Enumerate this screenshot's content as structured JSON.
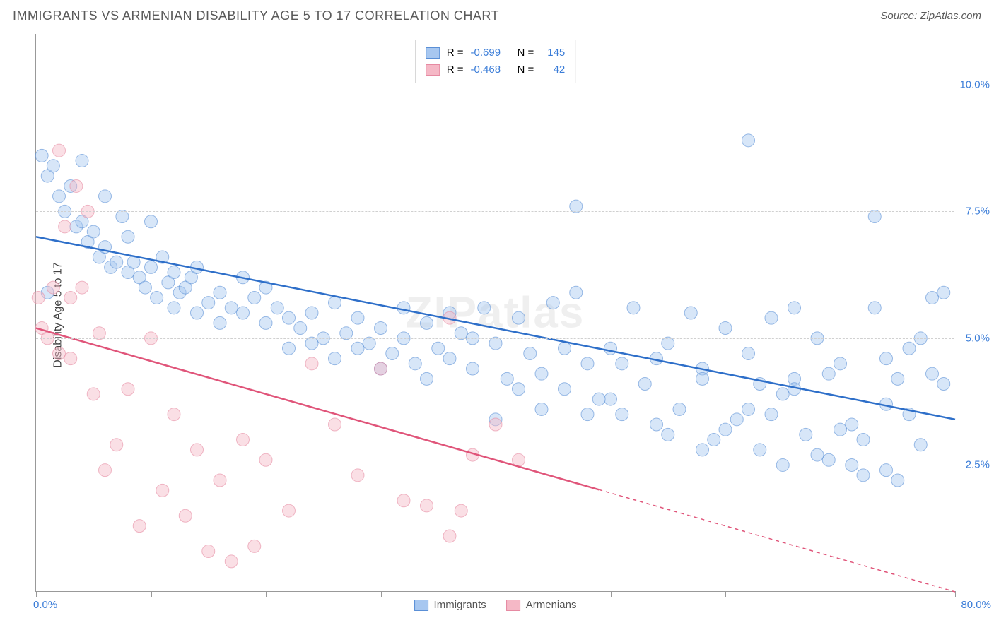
{
  "header": {
    "title": "IMMIGRANTS VS ARMENIAN DISABILITY AGE 5 TO 17 CORRELATION CHART",
    "source_prefix": "Source: ",
    "source": "ZipAtlas.com"
  },
  "watermark": "ZIPatlas",
  "chart": {
    "type": "scatter",
    "ylabel": "Disability Age 5 to 17",
    "xlim": [
      0,
      80
    ],
    "ylim": [
      0,
      11
    ],
    "xtick_positions": [
      0,
      10,
      20,
      30,
      40,
      50,
      60,
      70,
      80
    ],
    "xlabel_min": "0.0%",
    "xlabel_max": "80.0%",
    "yticks": [
      {
        "v": 2.5,
        "label": "2.5%"
      },
      {
        "v": 5.0,
        "label": "5.0%"
      },
      {
        "v": 7.5,
        "label": "7.5%"
      },
      {
        "v": 10.0,
        "label": "10.0%"
      }
    ],
    "grid_color": "#d0d0d0",
    "background_color": "#ffffff",
    "marker_radius": 9,
    "marker_opacity": 0.45,
    "line_width": 2.5,
    "series": [
      {
        "name": "Immigrants",
        "color_fill": "#a7c7f0",
        "color_stroke": "#5a8fd6",
        "line_color": "#2e6fc9",
        "R": "-0.699",
        "N": "145",
        "trend": {
          "x1": 0,
          "y1": 7.0,
          "x2": 80,
          "y2": 3.4,
          "solid_until_x": 80
        },
        "points": [
          [
            0.5,
            8.6
          ],
          [
            1,
            8.2
          ],
          [
            1.5,
            8.4
          ],
          [
            2,
            7.8
          ],
          [
            2.5,
            7.5
          ],
          [
            3,
            8.0
          ],
          [
            3.5,
            7.2
          ],
          [
            1,
            5.9
          ],
          [
            4,
            7.3
          ],
          [
            4.5,
            6.9
          ],
          [
            5,
            7.1
          ],
          [
            5.5,
            6.6
          ],
          [
            6,
            6.8
          ],
          [
            6.5,
            6.4
          ],
          [
            7,
            6.5
          ],
          [
            7.5,
            7.4
          ],
          [
            8,
            6.3
          ],
          [
            8.5,
            6.5
          ],
          [
            9,
            6.2
          ],
          [
            9.5,
            6.0
          ],
          [
            10,
            6.4
          ],
          [
            10.5,
            5.8
          ],
          [
            11,
            6.6
          ],
          [
            11.5,
            6.1
          ],
          [
            12,
            6.3
          ],
          [
            12.5,
            5.9
          ],
          [
            13,
            6.0
          ],
          [
            13.5,
            6.2
          ],
          [
            14,
            6.4
          ],
          [
            15,
            5.7
          ],
          [
            16,
            5.9
          ],
          [
            17,
            5.6
          ],
          [
            18,
            5.5
          ],
          [
            19,
            5.8
          ],
          [
            20,
            5.3
          ],
          [
            21,
            5.6
          ],
          [
            22,
            5.4
          ],
          [
            23,
            5.2
          ],
          [
            24,
            5.5
          ],
          [
            25,
            5.0
          ],
          [
            26,
            5.7
          ],
          [
            27,
            5.1
          ],
          [
            28,
            5.4
          ],
          [
            29,
            4.9
          ],
          [
            30,
            5.2
          ],
          [
            31,
            4.7
          ],
          [
            32,
            5.0
          ],
          [
            33,
            4.5
          ],
          [
            34,
            5.3
          ],
          [
            35,
            4.8
          ],
          [
            36,
            4.6
          ],
          [
            37,
            5.1
          ],
          [
            38,
            4.4
          ],
          [
            39,
            5.6
          ],
          [
            40,
            4.9
          ],
          [
            41,
            4.2
          ],
          [
            42,
            5.4
          ],
          [
            43,
            4.7
          ],
          [
            44,
            4.3
          ],
          [
            45,
            5.7
          ],
          [
            46,
            4.0
          ],
          [
            47,
            5.9
          ],
          [
            48,
            4.5
          ],
          [
            49,
            3.8
          ],
          [
            50,
            4.8
          ],
          [
            51,
            3.5
          ],
          [
            52,
            5.6
          ],
          [
            53,
            4.1
          ],
          [
            54,
            3.3
          ],
          [
            55,
            4.9
          ],
          [
            56,
            3.6
          ],
          [
            57,
            5.5
          ],
          [
            58,
            4.4
          ],
          [
            59,
            3.0
          ],
          [
            60,
            5.2
          ],
          [
            61,
            3.4
          ],
          [
            62,
            4.7
          ],
          [
            63,
            2.8
          ],
          [
            64,
            5.4
          ],
          [
            65,
            3.9
          ],
          [
            65,
            2.5
          ],
          [
            66,
            4.2
          ],
          [
            67,
            3.1
          ],
          [
            68,
            5.0
          ],
          [
            69,
            2.6
          ],
          [
            70,
            4.5
          ],
          [
            71,
            3.3
          ],
          [
            72,
            2.3
          ],
          [
            73,
            5.6
          ],
          [
            74,
            3.7
          ],
          [
            75,
            2.2
          ],
          [
            76,
            4.8
          ],
          [
            77,
            2.9
          ],
          [
            78,
            5.8
          ],
          [
            79,
            4.1
          ],
          [
            47,
            7.6
          ],
          [
            62,
            8.9
          ],
          [
            66,
            5.6
          ],
          [
            60,
            3.2
          ],
          [
            55,
            3.1
          ],
          [
            73,
            7.4
          ],
          [
            69,
            4.3
          ],
          [
            71,
            2.5
          ],
          [
            74,
            2.4
          ],
          [
            63,
            4.1
          ],
          [
            58,
            2.8
          ],
          [
            51,
            4.5
          ],
          [
            48,
            3.5
          ],
          [
            44,
            3.6
          ],
          [
            40,
            3.4
          ],
          [
            36,
            5.5
          ],
          [
            32,
            5.6
          ],
          [
            28,
            4.8
          ],
          [
            24,
            4.9
          ],
          [
            20,
            6.0
          ],
          [
            16,
            5.3
          ],
          [
            12,
            5.6
          ],
          [
            8,
            7.0
          ],
          [
            4,
            8.5
          ],
          [
            6,
            7.8
          ],
          [
            10,
            7.3
          ],
          [
            14,
            5.5
          ],
          [
            18,
            6.2
          ],
          [
            22,
            4.8
          ],
          [
            26,
            4.6
          ],
          [
            30,
            4.4
          ],
          [
            34,
            4.2
          ],
          [
            38,
            5.0
          ],
          [
            42,
            4.0
          ],
          [
            46,
            4.8
          ],
          [
            50,
            3.8
          ],
          [
            54,
            4.6
          ],
          [
            58,
            4.2
          ],
          [
            62,
            3.6
          ],
          [
            66,
            4.0
          ],
          [
            70,
            3.2
          ],
          [
            74,
            4.6
          ],
          [
            78,
            4.3
          ],
          [
            76,
            3.5
          ],
          [
            72,
            3.0
          ],
          [
            68,
            2.7
          ],
          [
            64,
            3.5
          ],
          [
            77,
            5.0
          ],
          [
            75,
            4.2
          ],
          [
            79,
            5.9
          ]
        ]
      },
      {
        "name": "Armenians",
        "color_fill": "#f5b8c6",
        "color_stroke": "#e68aa2",
        "line_color": "#e0557a",
        "R": "-0.468",
        "N": "42",
        "trend": {
          "x1": 0,
          "y1": 5.2,
          "x2": 80,
          "y2": 0.0,
          "solid_until_x": 49
        },
        "points": [
          [
            0.5,
            5.2
          ],
          [
            1,
            5.0
          ],
          [
            2,
            8.7
          ],
          [
            2.5,
            7.2
          ],
          [
            3,
            4.6
          ],
          [
            3.5,
            8.0
          ],
          [
            4,
            6.0
          ],
          [
            5,
            3.9
          ],
          [
            5.5,
            5.1
          ],
          [
            6,
            2.4
          ],
          [
            7,
            2.9
          ],
          [
            8,
            4.0
          ],
          [
            9,
            1.3
          ],
          [
            10,
            5.0
          ],
          [
            11,
            2.0
          ],
          [
            12,
            3.5
          ],
          [
            13,
            1.5
          ],
          [
            14,
            2.8
          ],
          [
            15,
            0.8
          ],
          [
            16,
            2.2
          ],
          [
            17,
            0.6
          ],
          [
            18,
            3.0
          ],
          [
            19,
            0.9
          ],
          [
            20,
            2.6
          ],
          [
            22,
            1.6
          ],
          [
            24,
            4.5
          ],
          [
            26,
            3.3
          ],
          [
            28,
            2.3
          ],
          [
            30,
            4.4
          ],
          [
            32,
            1.8
          ],
          [
            34,
            1.7
          ],
          [
            36,
            1.1
          ],
          [
            37,
            1.6
          ],
          [
            38,
            2.7
          ],
          [
            40,
            3.3
          ],
          [
            42,
            2.6
          ],
          [
            1.5,
            6.0
          ],
          [
            3,
            5.8
          ],
          [
            4.5,
            7.5
          ],
          [
            36,
            5.4
          ],
          [
            0.2,
            5.8
          ],
          [
            2,
            4.7
          ]
        ]
      }
    ]
  },
  "legend_top": {
    "label_R": "R =",
    "label_N": "N ="
  },
  "legend_bottom": {
    "items": [
      "Immigrants",
      "Armenians"
    ]
  }
}
